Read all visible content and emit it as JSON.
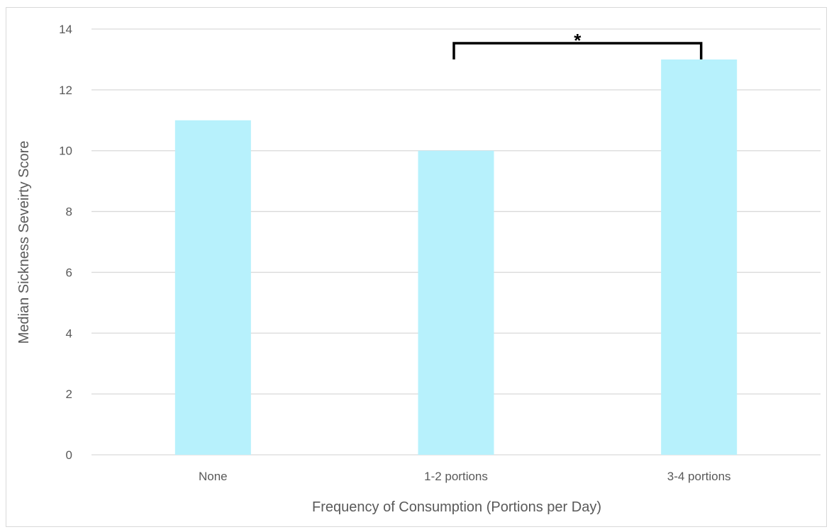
{
  "chart_data": {
    "type": "bar",
    "title": "",
    "xlabel": "Frequency of Consumption (Portions per Day)",
    "ylabel": "Median Sickness Seveirty Score",
    "categories": [
      "None",
      "1-2 portions",
      "3-4 portions"
    ],
    "values": [
      11,
      10,
      13
    ],
    "ylim": [
      0,
      14
    ],
    "yticks": [
      0,
      2,
      4,
      6,
      8,
      10,
      12,
      14
    ],
    "grid": true,
    "legend": "none",
    "bar_color": "#b7f1fc",
    "gridline_color": "#d9d9d9",
    "annotations": [
      {
        "type": "significance-bracket",
        "from": "1-2 portions",
        "to": "3-4 portions",
        "label": "*"
      }
    ]
  }
}
